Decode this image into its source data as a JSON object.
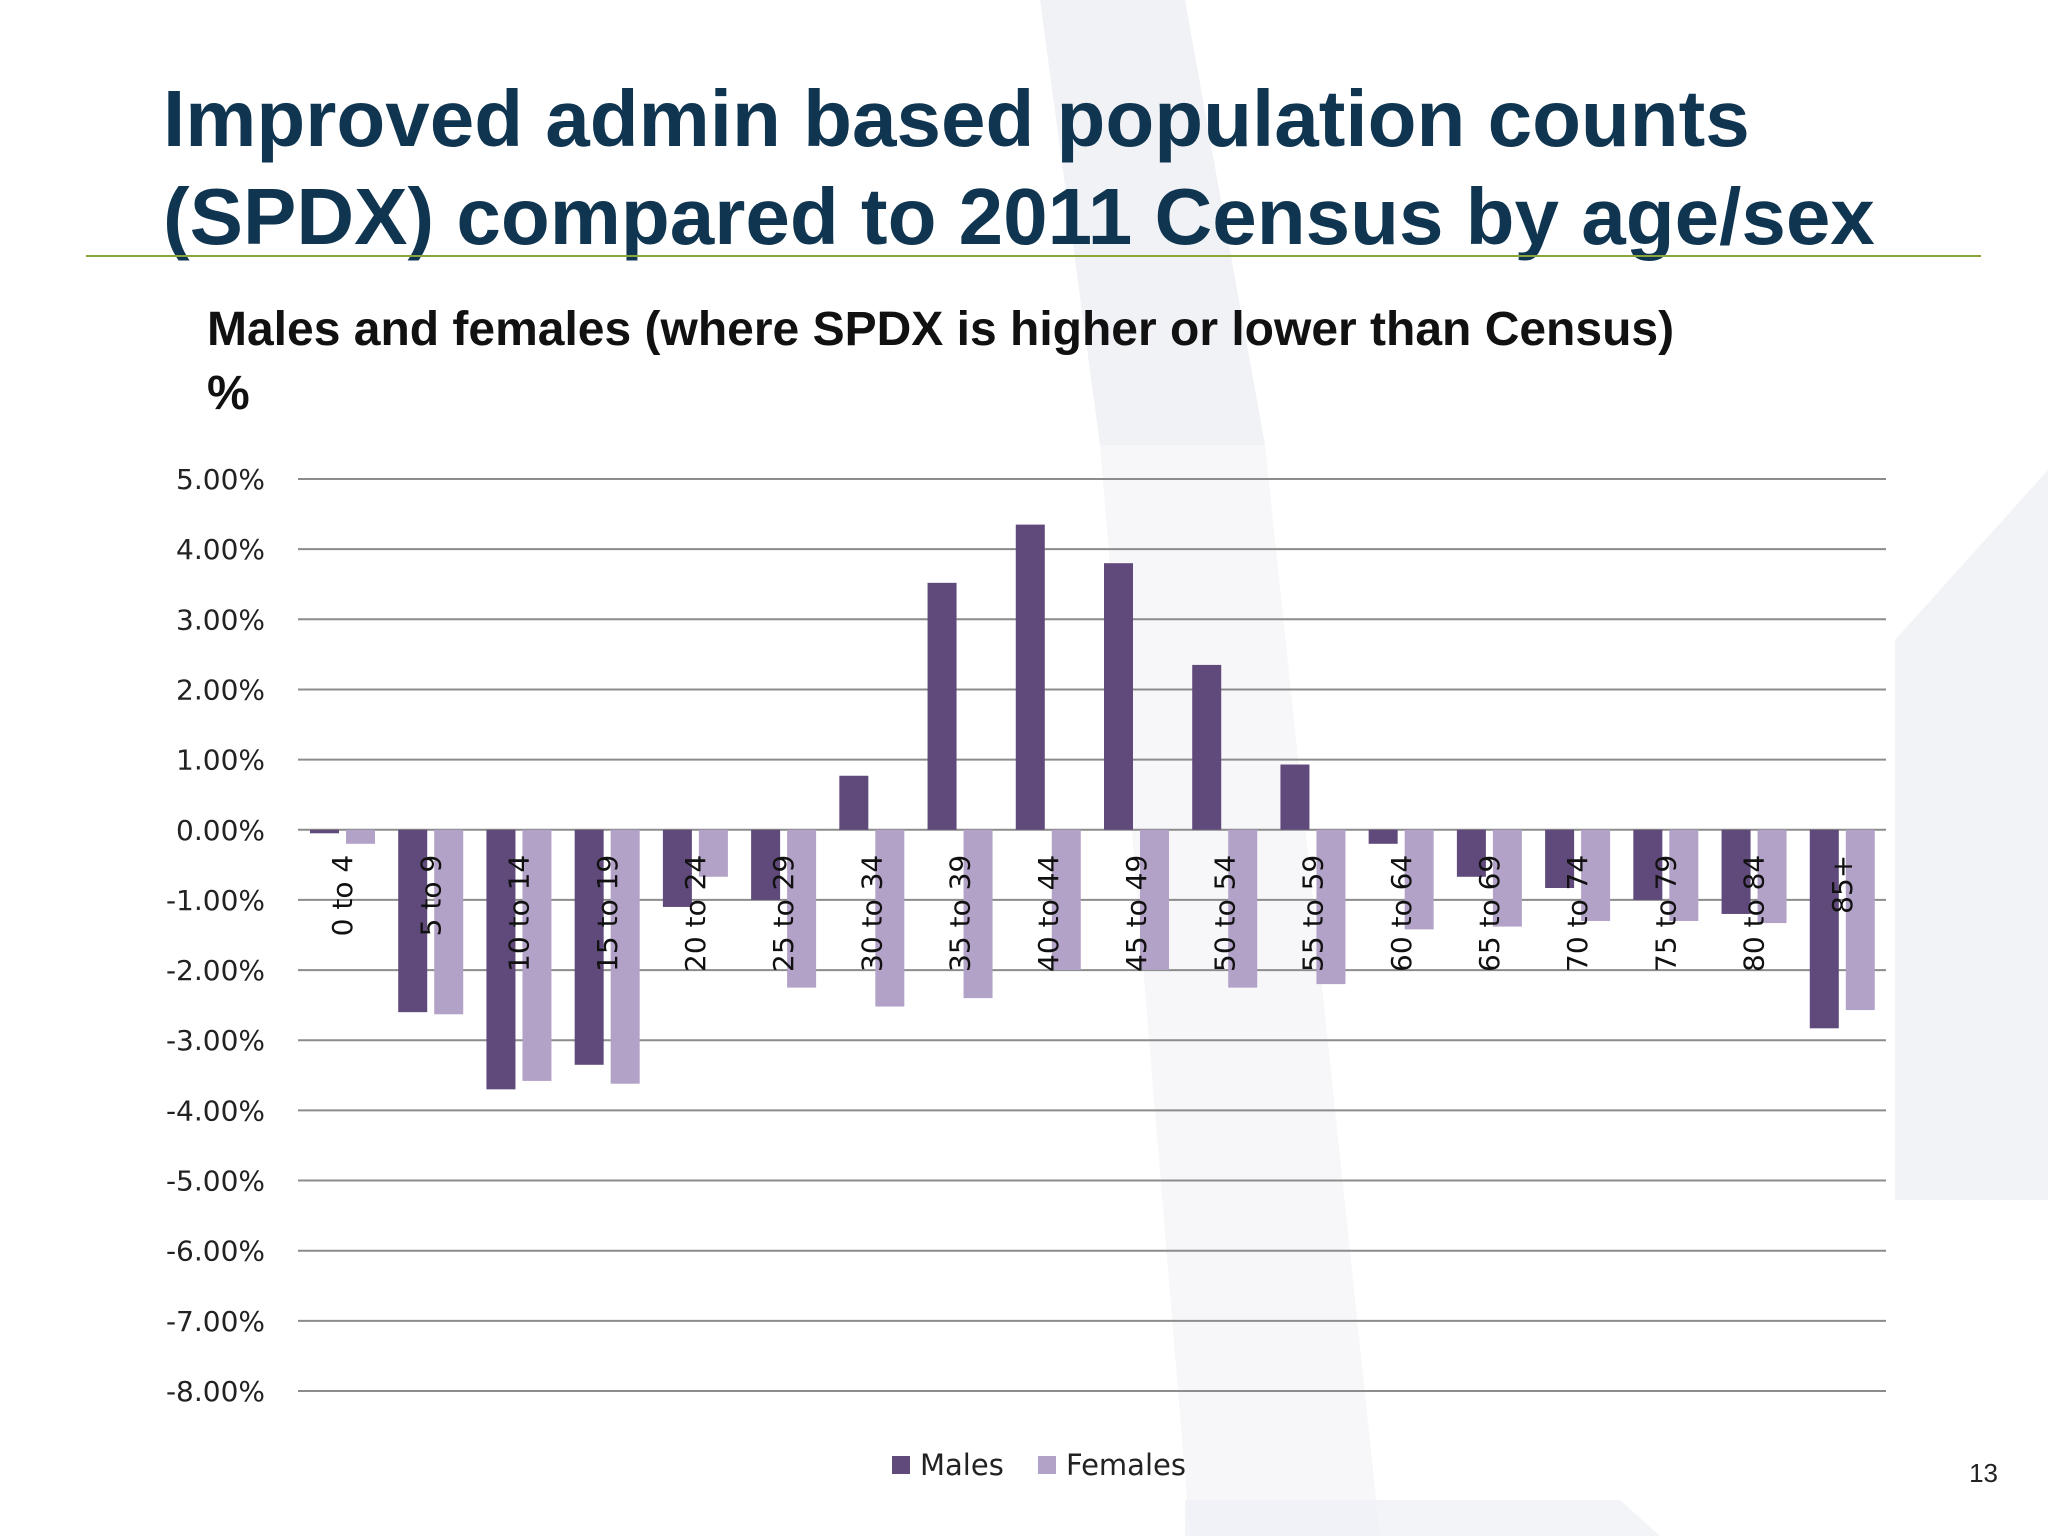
{
  "slide": {
    "title_line1": "Improved admin based population counts",
    "title_line2": "(SPDX) compared to 2011 Census by age/sex",
    "subtitle_line1": "Males and females (where SPDX is higher or lower than Census)",
    "subtitle_line2": "%",
    "page_number": "13"
  },
  "colors": {
    "title": "#0f3550",
    "rule": "#8aa63a",
    "males": "#604a7b",
    "females": "#b3a2c7",
    "gridline": "#8c8c8c"
  },
  "chart_data": {
    "type": "bar",
    "categories": [
      "0 to 4",
      "5 to 9",
      "10 to 14",
      "15 to 19",
      "20 to 24",
      "25 to 29",
      "30 to 34",
      "35 to 39",
      "40 to 44",
      "45 to 49",
      "50 to 54",
      "55 to 59",
      "60 to 64",
      "65 to 69",
      "70 to 74",
      "75 to 79",
      "80 to 84",
      "85+"
    ],
    "series": [
      {
        "name": "Males",
        "color": "#604a7b",
        "values": [
          -0.05,
          -2.6,
          -3.7,
          -3.35,
          -1.1,
          -1.0,
          0.77,
          3.52,
          4.35,
          3.8,
          2.35,
          0.93,
          -0.2,
          -0.67,
          -0.83,
          -1.0,
          -1.2,
          -2.83
        ]
      },
      {
        "name": "Females",
        "color": "#b3a2c7",
        "values": [
          -0.2,
          -2.63,
          -3.58,
          -3.62,
          -0.67,
          -2.25,
          -2.52,
          -2.4,
          -2.0,
          -2.0,
          -2.25,
          -2.2,
          -1.42,
          -1.38,
          -1.3,
          -1.3,
          -1.33,
          -2.57
        ]
      }
    ],
    "y_ticks": [
      "5.00%",
      "4.00%",
      "3.00%",
      "2.00%",
      "1.00%",
      "0.00%",
      "-1.00%",
      "-2.00%",
      "-3.00%",
      "-4.00%",
      "-5.00%",
      "-6.00%",
      "-7.00%",
      "-8.00%"
    ],
    "ylim": [
      -8,
      5
    ],
    "ylabel_unit": "%",
    "grid": true,
    "legend": "bottom"
  }
}
